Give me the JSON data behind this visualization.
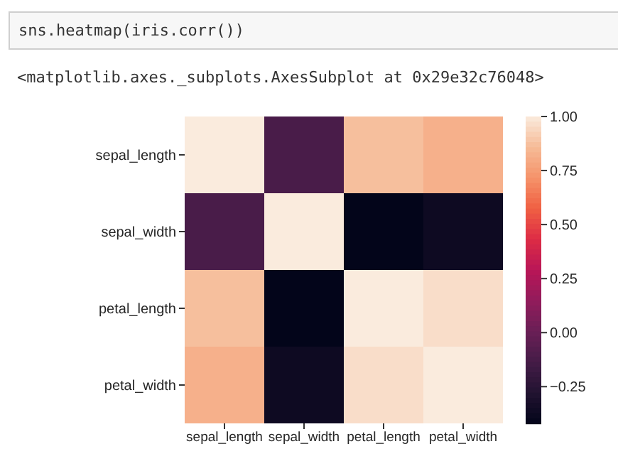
{
  "chart_data": {
    "type": "heatmap",
    "annotations": [
      "sns.heatmap(iris.corr())",
      "<matplotlib.axes._subplots.AxesSubplot at 0x29e32c76048>"
    ],
    "categories": [
      "sepal_length",
      "sepal_width",
      "petal_length",
      "petal_width"
    ],
    "y_categories": [
      "sepal_length",
      "sepal_width",
      "petal_length",
      "petal_width"
    ],
    "cells": [
      [
        1.0,
        -0.12,
        0.87,
        0.82
      ],
      [
        -0.12,
        1.0,
        -0.42,
        -0.37
      ],
      [
        0.87,
        -0.42,
        1.0,
        0.96
      ],
      [
        0.82,
        -0.37,
        0.96,
        1.0
      ]
    ],
    "clim": [
      -0.42,
      1.0
    ],
    "cticks": [
      {
        "value": -0.25,
        "label": "−0.25"
      },
      {
        "value": 0,
        "label": "0.00"
      },
      {
        "value": 0.25,
        "label": "0.25"
      },
      {
        "value": 0.5,
        "label": "0.50"
      },
      {
        "value": 0.75,
        "label": "0.75"
      },
      {
        "value": 1,
        "label": "1.00"
      }
    ]
  }
}
